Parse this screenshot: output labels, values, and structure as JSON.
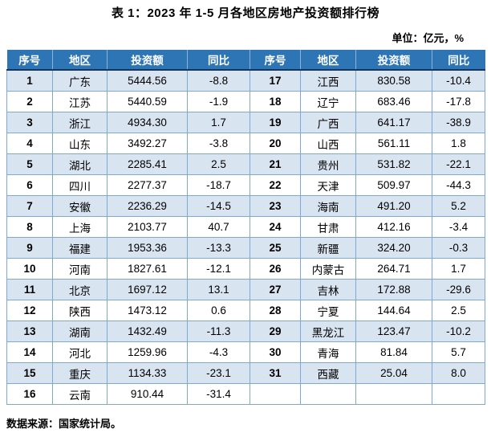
{
  "title": "表 1：2023 年 1-5 月各地区房地产投资额排行榜",
  "unit_label": "单位：亿元，%",
  "source_note": "数据来源：国家统计局。",
  "table": {
    "headers": [
      "序号",
      "地区",
      "投资额",
      "同比"
    ],
    "rows": [
      {
        "rank": "1",
        "region": "广东",
        "investment": "5444.56",
        "yoy": "-8.8"
      },
      {
        "rank": "2",
        "region": "江苏",
        "investment": "5440.59",
        "yoy": "-1.9"
      },
      {
        "rank": "3",
        "region": "浙江",
        "investment": "4934.30",
        "yoy": "1.7"
      },
      {
        "rank": "4",
        "region": "山东",
        "investment": "3492.27",
        "yoy": "-3.8"
      },
      {
        "rank": "5",
        "region": "湖北",
        "investment": "2285.41",
        "yoy": "2.5"
      },
      {
        "rank": "6",
        "region": "四川",
        "investment": "2277.37",
        "yoy": "-18.7"
      },
      {
        "rank": "7",
        "region": "安徽",
        "investment": "2236.29",
        "yoy": "-14.5"
      },
      {
        "rank": "8",
        "region": "上海",
        "investment": "2103.77",
        "yoy": "40.7"
      },
      {
        "rank": "9",
        "region": "福建",
        "investment": "1953.36",
        "yoy": "-13.3"
      },
      {
        "rank": "10",
        "region": "河南",
        "investment": "1827.61",
        "yoy": "-12.1"
      },
      {
        "rank": "11",
        "region": "北京",
        "investment": "1697.12",
        "yoy": "13.1"
      },
      {
        "rank": "12",
        "region": "陕西",
        "investment": "1473.12",
        "yoy": "0.6"
      },
      {
        "rank": "13",
        "region": "湖南",
        "investment": "1432.49",
        "yoy": "-11.3"
      },
      {
        "rank": "14",
        "region": "河北",
        "investment": "1259.96",
        "yoy": "-4.3"
      },
      {
        "rank": "15",
        "region": "重庆",
        "investment": "1134.33",
        "yoy": "-23.1"
      },
      {
        "rank": "16",
        "region": "云南",
        "investment": "910.44",
        "yoy": "-31.4"
      },
      {
        "rank": "17",
        "region": "江西",
        "investment": "830.58",
        "yoy": "-10.4"
      },
      {
        "rank": "18",
        "region": "辽宁",
        "investment": "683.46",
        "yoy": "-17.8"
      },
      {
        "rank": "19",
        "region": "广西",
        "investment": "641.17",
        "yoy": "-38.9"
      },
      {
        "rank": "20",
        "region": "山西",
        "investment": "561.11",
        "yoy": "1.8"
      },
      {
        "rank": "21",
        "region": "贵州",
        "investment": "531.82",
        "yoy": "-22.1"
      },
      {
        "rank": "22",
        "region": "天津",
        "investment": "509.97",
        "yoy": "-44.3"
      },
      {
        "rank": "23",
        "region": "海南",
        "investment": "491.20",
        "yoy": "5.2"
      },
      {
        "rank": "24",
        "region": "甘肃",
        "investment": "412.16",
        "yoy": "-3.4"
      },
      {
        "rank": "25",
        "region": "新疆",
        "investment": "324.20",
        "yoy": "-0.3"
      },
      {
        "rank": "26",
        "region": "内蒙古",
        "investment": "264.71",
        "yoy": "1.7"
      },
      {
        "rank": "27",
        "region": "吉林",
        "investment": "172.88",
        "yoy": "-29.6"
      },
      {
        "rank": "28",
        "region": "宁夏",
        "investment": "144.64",
        "yoy": "2.5"
      },
      {
        "rank": "29",
        "region": "黑龙江",
        "investment": "123.47",
        "yoy": "-10.2"
      },
      {
        "rank": "30",
        "region": "青海",
        "investment": "81.84",
        "yoy": "5.7"
      },
      {
        "rank": "31",
        "region": "西藏",
        "investment": "25.04",
        "yoy": "8.0"
      }
    ]
  },
  "colors": {
    "header_bg": "#2E75B6",
    "header_text": "#FFFFFF",
    "header_underline": "#17365D",
    "row_alt_bg": "#D9E4F1",
    "border": "#7EA8D8",
    "text": "#000000"
  }
}
